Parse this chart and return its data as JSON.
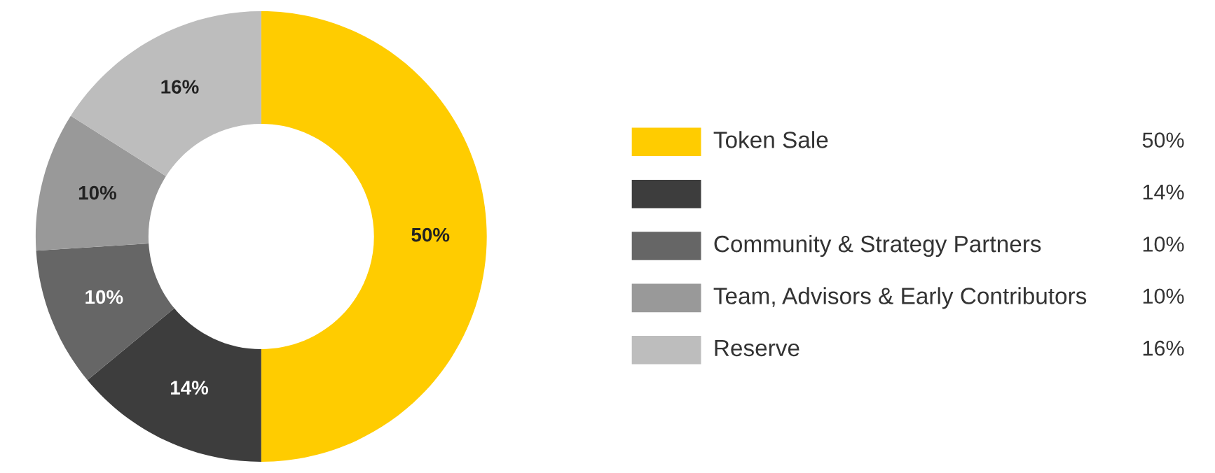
{
  "chart_data": {
    "type": "donut",
    "categories": [
      "Token Sale",
      null,
      "Community & Strategy Partners",
      "Team, Advisors & Early Contributors",
      "Reserve"
    ],
    "values": [
      50,
      14,
      10,
      10,
      16
    ],
    "colors": [
      "#ffcc00",
      "#3d3d3d",
      "#666666",
      "#999999",
      "#bdbdbd"
    ],
    "value_labels": [
      "50%",
      "14%",
      "10%",
      "10%",
      "16%"
    ],
    "legend": "right"
  }
}
